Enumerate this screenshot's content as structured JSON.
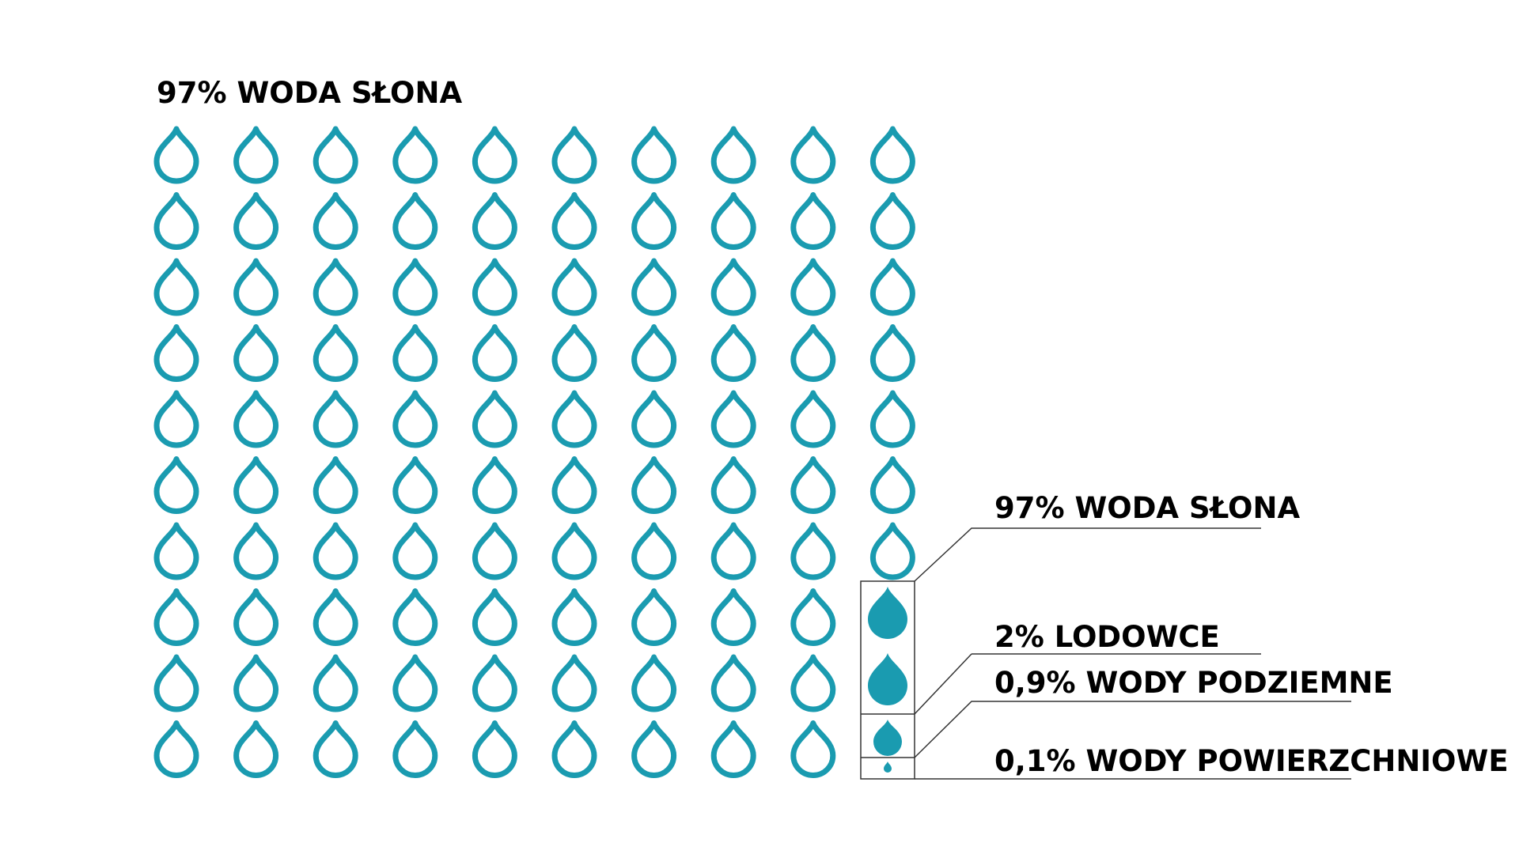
{
  "title": "97% WODA SŁONA",
  "colors": {
    "drop": "#1a9bb0",
    "text": "#000000",
    "line": "#333333"
  },
  "chart_data": {
    "type": "pictogram",
    "unit_icon": "water-drop-icon",
    "grid": {
      "rows": 10,
      "columns": 10
    },
    "total_icons": 100,
    "categories": [
      "97% WODA SŁONA",
      "2% LODOWCE",
      "0,9% WODY PODZIEMNE",
      "0,1% WODY POWIERZCHNIOWE"
    ],
    "values": [
      97,
      2,
      0.9,
      0.1
    ],
    "series": [
      {
        "name": "97% WODA SŁONA",
        "value": 97,
        "icon_style": "outline"
      },
      {
        "name": "2% LODOWCE",
        "value": 2,
        "icon_style": "filled"
      },
      {
        "name": "0,9% WODY PODZIEMNE",
        "value": 0.9,
        "icon_style": "filled"
      },
      {
        "name": "0,1% WODY POWIERZCHNIOWE",
        "value": 0.1,
        "icon_style": "filled"
      }
    ]
  }
}
